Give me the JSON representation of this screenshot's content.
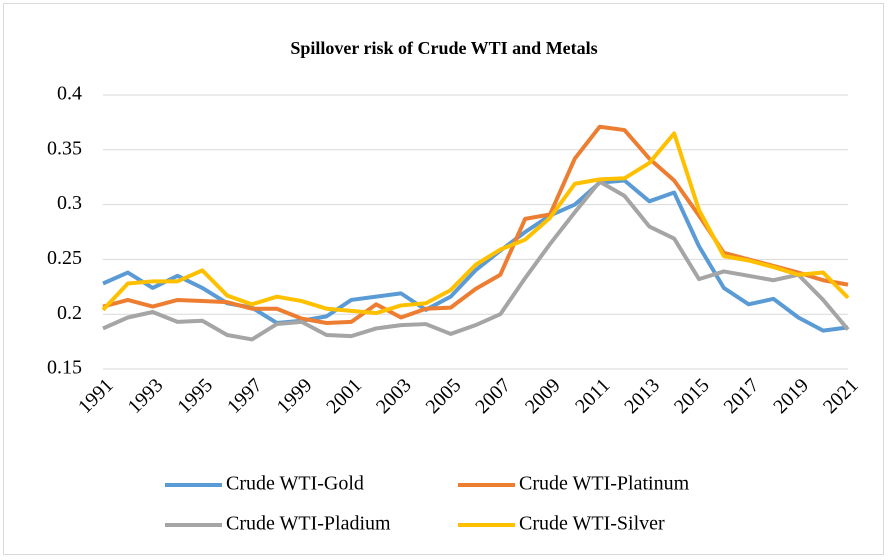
{
  "chart_data": {
    "type": "line",
    "title": "Spillover risk of Crude WTI and Metals",
    "x": [
      1991,
      1992,
      1993,
      1994,
      1995,
      1996,
      1997,
      1998,
      1999,
      2000,
      2001,
      2002,
      2003,
      2004,
      2005,
      2006,
      2007,
      2008,
      2009,
      2010,
      2011,
      2012,
      2013,
      2014,
      2015,
      2016,
      2017,
      2018,
      2019,
      2020,
      2021
    ],
    "xlim": [
      1991,
      2021
    ],
    "xticks": [
      1991,
      1993,
      1995,
      1997,
      1999,
      2001,
      2003,
      2005,
      2007,
      2009,
      2011,
      2013,
      2015,
      2017,
      2019,
      2021
    ],
    "ylim": [
      0.15,
      0.4
    ],
    "yticks": [
      0.15,
      0.2,
      0.25,
      0.3,
      0.35,
      0.4
    ],
    "grid": true,
    "legend": "bottom",
    "series": [
      {
        "name": "Crude WTI-Gold",
        "color": "#5b9bd5",
        "values": [
          0.228,
          0.238,
          0.224,
          0.235,
          0.224,
          0.21,
          0.206,
          0.192,
          0.194,
          0.198,
          0.213,
          0.216,
          0.219,
          0.204,
          0.216,
          0.24,
          0.258,
          0.275,
          0.29,
          0.3,
          0.32,
          0.322,
          0.303,
          0.311,
          0.262,
          0.224,
          0.209,
          0.214,
          0.197,
          0.185,
          0.188
        ]
      },
      {
        "name": "Crude WTI-Platinum",
        "color": "#ed7d31",
        "values": [
          0.207,
          0.213,
          0.207,
          0.213,
          0.212,
          0.211,
          0.205,
          0.205,
          0.196,
          0.192,
          0.193,
          0.209,
          0.197,
          0.205,
          0.206,
          0.223,
          0.236,
          0.287,
          0.291,
          0.342,
          0.371,
          0.368,
          0.342,
          0.322,
          0.29,
          0.256,
          0.25,
          0.244,
          0.238,
          0.231,
          0.227
        ]
      },
      {
        "name": "Crude WTI-Pladium",
        "color": "#a5a5a5",
        "values": [
          0.187,
          0.197,
          0.202,
          0.193,
          0.194,
          0.181,
          0.177,
          0.191,
          0.193,
          0.181,
          0.18,
          0.187,
          0.19,
          0.191,
          0.182,
          0.19,
          0.2,
          0.233,
          0.264,
          0.293,
          0.321,
          0.308,
          0.28,
          0.269,
          0.232,
          0.239,
          0.235,
          0.231,
          0.236,
          0.213,
          0.186
        ]
      },
      {
        "name": "Crude WTI-Silver",
        "color": "#ffc000",
        "values": [
          0.204,
          0.228,
          0.23,
          0.23,
          0.24,
          0.217,
          0.209,
          0.216,
          0.212,
          0.205,
          0.203,
          0.201,
          0.208,
          0.21,
          0.222,
          0.245,
          0.259,
          0.268,
          0.288,
          0.319,
          0.323,
          0.324,
          0.338,
          0.365,
          0.295,
          0.253,
          0.249,
          0.243,
          0.236,
          0.238,
          0.215
        ]
      }
    ]
  }
}
